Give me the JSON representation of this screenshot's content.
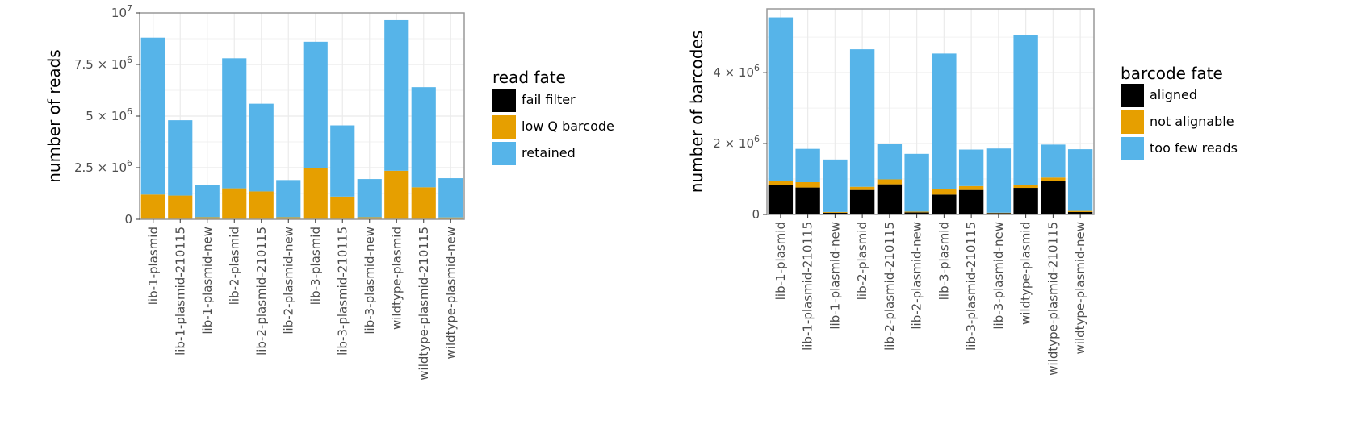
{
  "chart_data": [
    {
      "type": "bar",
      "stacked": true,
      "categories": [
        "lib-1-plasmid",
        "lib-1-plasmid-210115",
        "lib-1-plasmid-new",
        "lib-2-plasmid",
        "lib-2-plasmid-210115",
        "lib-2-plasmid-new",
        "lib-3-plasmid",
        "lib-3-plasmid-210115",
        "lib-3-plasmid-new",
        "wildtype-plasmid",
        "wildtype-plasmid-210115",
        "wildtype-plasmid-new"
      ],
      "series": [
        {
          "name": "fail filter",
          "color": "#000000",
          "values": [
            0,
            0,
            0,
            0,
            0,
            0,
            0,
            0,
            0,
            0,
            0,
            0
          ]
        },
        {
          "name": "low Q barcode",
          "color": "#E69F00",
          "values": [
            1200000,
            1150000,
            100000,
            1500000,
            1350000,
            100000,
            2500000,
            1100000,
            100000,
            2350000,
            1550000,
            90000
          ]
        },
        {
          "name": "retained",
          "color": "#56B4E9",
          "values": [
            7600000,
            3650000,
            1550000,
            6300000,
            4250000,
            1800000,
            6100000,
            3450000,
            1850000,
            7300000,
            4850000,
            1900000
          ]
        }
      ],
      "ylabel": "number of reads",
      "ylim": [
        0,
        10000000
      ],
      "yticks": [
        {
          "value": 0,
          "base": "0",
          "exp": ""
        },
        {
          "value": 2500000,
          "base": "2.5 × 10",
          "exp": "6"
        },
        {
          "value": 5000000,
          "base": "5 × 10",
          "exp": "6"
        },
        {
          "value": 7500000,
          "base": "7.5 × 10",
          "exp": "6"
        },
        {
          "value": 10000000,
          "base": "10",
          "exp": "7"
        }
      ],
      "grid": true,
      "legend_title": "read fate",
      "legend_position": "right"
    },
    {
      "type": "bar",
      "stacked": true,
      "categories": [
        "lib-1-plasmid",
        "lib-1-plasmid-210115",
        "lib-1-plasmid-new",
        "lib-2-plasmid",
        "lib-2-plasmid-210115",
        "lib-2-plasmid-new",
        "lib-3-plasmid",
        "lib-3-plasmid-210115",
        "lib-3-plasmid-new",
        "wildtype-plasmid",
        "wildtype-plasmid-210115",
        "wildtype-plasmid-new"
      ],
      "series": [
        {
          "name": "aligned",
          "color": "#000000",
          "values": [
            830000,
            760000,
            50000,
            690000,
            850000,
            60000,
            560000,
            690000,
            40000,
            750000,
            950000,
            70000
          ]
        },
        {
          "name": "not alignable",
          "color": "#E69F00",
          "values": [
            110000,
            150000,
            20000,
            90000,
            140000,
            20000,
            150000,
            110000,
            10000,
            90000,
            90000,
            30000
          ]
        },
        {
          "name": "too few reads",
          "color": "#56B4E9",
          "values": [
            4620000,
            940000,
            1480000,
            3880000,
            990000,
            1630000,
            3830000,
            1030000,
            1810000,
            4220000,
            930000,
            1740000
          ]
        }
      ],
      "ylabel": "number of barcodes",
      "ylim": [
        0,
        5800000
      ],
      "yticks": [
        {
          "value": 0,
          "base": "0",
          "exp": ""
        },
        {
          "value": 2000000,
          "base": "2 × 10",
          "exp": "6"
        },
        {
          "value": 4000000,
          "base": "4 × 10",
          "exp": "6"
        }
      ],
      "grid": true,
      "legend_title": "barcode fate",
      "legend_position": "right"
    }
  ]
}
